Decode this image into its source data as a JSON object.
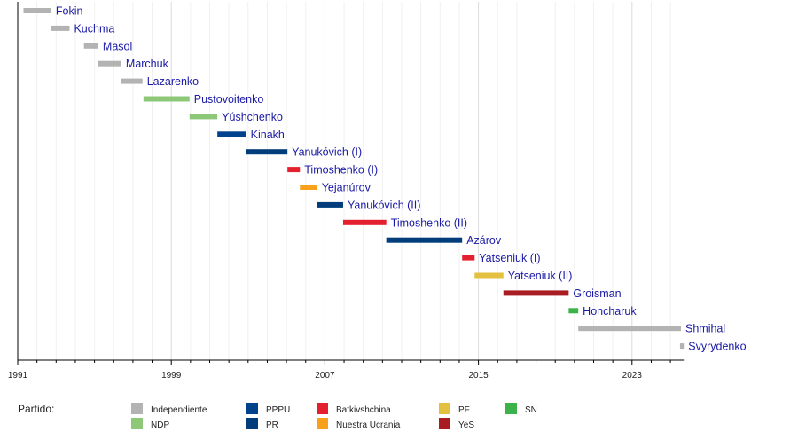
{
  "chart_data": {
    "type": "bar",
    "subtype": "timeline-gantt",
    "title": "",
    "xlabel": "",
    "ylabel": "",
    "xlim": [
      1991,
      2025.7
    ],
    "grid": true,
    "x_ticks_major": [
      1991,
      1999,
      2007,
      2015,
      2023
    ],
    "x_tick_labels": [
      "1991",
      "1999",
      "2007",
      "2015",
      "2023"
    ],
    "parties": {
      "Independiente": "#b3b3b3",
      "NDP": "#8cc878",
      "PPPU": "#00428c",
      "PR": "#003d7a",
      "Batkivshchina": "#e5202e",
      "Nuestra Ucrania": "#f9a11b",
      "PF": "#e4c040",
      "YeS": "#a81c22",
      "SN": "#3cb34a"
    },
    "series": [
      {
        "name": "Fokin",
        "start": 1991.3,
        "end": 1992.75,
        "party": "Independiente"
      },
      {
        "name": "Kuchma",
        "start": 1992.75,
        "end": 1993.7,
        "party": "Independiente"
      },
      {
        "name": "Masol",
        "start": 1994.45,
        "end": 1995.2,
        "party": "Independiente"
      },
      {
        "name": "Marchuk",
        "start": 1995.2,
        "end": 1996.4,
        "party": "Independiente"
      },
      {
        "name": "Lazarenko",
        "start": 1996.4,
        "end": 1997.5,
        "party": "Independiente"
      },
      {
        "name": "Pustovoitenko",
        "start": 1997.55,
        "end": 1999.95,
        "party": "NDP"
      },
      {
        "name": "Yúshchenko",
        "start": 1999.95,
        "end": 2001.4,
        "party": "Independiente_green"
      },
      {
        "name": "Kinakh",
        "start": 2001.4,
        "end": 2002.9,
        "party": "PPPU"
      },
      {
        "name": "Yanukóvich (I)",
        "start": 2002.9,
        "end": 2005.05,
        "party": "PR"
      },
      {
        "name": "Timoshenko (I)",
        "start": 2005.05,
        "end": 2005.7,
        "party": "Batkivshchina"
      },
      {
        "name": "Yejanúrov",
        "start": 2005.7,
        "end": 2006.6,
        "party": "Nuestra Ucrania"
      },
      {
        "name": "Yanukóvich (II)",
        "start": 2006.6,
        "end": 2007.95,
        "party": "PR"
      },
      {
        "name": "Timoshenko (II)",
        "start": 2007.95,
        "end": 2010.2,
        "party": "Batkivshchina"
      },
      {
        "name": "Azárov",
        "start": 2010.2,
        "end": 2014.15,
        "party": "PR"
      },
      {
        "name": "Yatseniuk (I)",
        "start": 2014.15,
        "end": 2014.8,
        "party": "Batkivshchina"
      },
      {
        "name": "Yatseniuk (II)",
        "start": 2014.8,
        "end": 2016.3,
        "party": "PF"
      },
      {
        "name": "Groisman",
        "start": 2016.3,
        "end": 2019.7,
        "party": "YeS"
      },
      {
        "name": "Honcharuk",
        "start": 2019.7,
        "end": 2020.2,
        "party": "SN"
      },
      {
        "name": "Shmihal",
        "start": 2020.2,
        "end": 2025.55,
        "party": "Independiente"
      },
      {
        "name": "Svyrydenko",
        "start": 2025.5,
        "end": 2025.7,
        "party": "Independiente"
      }
    ],
    "legend": {
      "title": "Partido:",
      "placement": "bottom",
      "items": [
        {
          "label": "Independiente",
          "color": "#b3b3b3"
        },
        {
          "label": "NDP",
          "color": "#8cc878"
        },
        {
          "label": "PPPU",
          "color": "#00428c"
        },
        {
          "label": "PR",
          "color": "#003d7a"
        },
        {
          "label": "Batkivshchina",
          "color": "#e5202e"
        },
        {
          "label": "Nuestra Ucrania",
          "color": "#f9a11b"
        },
        {
          "label": "PF",
          "color": "#e4c040"
        },
        {
          "label": "YeS",
          "color": "#a81c22"
        },
        {
          "label": "SN",
          "color": "#3cb34a"
        }
      ]
    }
  }
}
